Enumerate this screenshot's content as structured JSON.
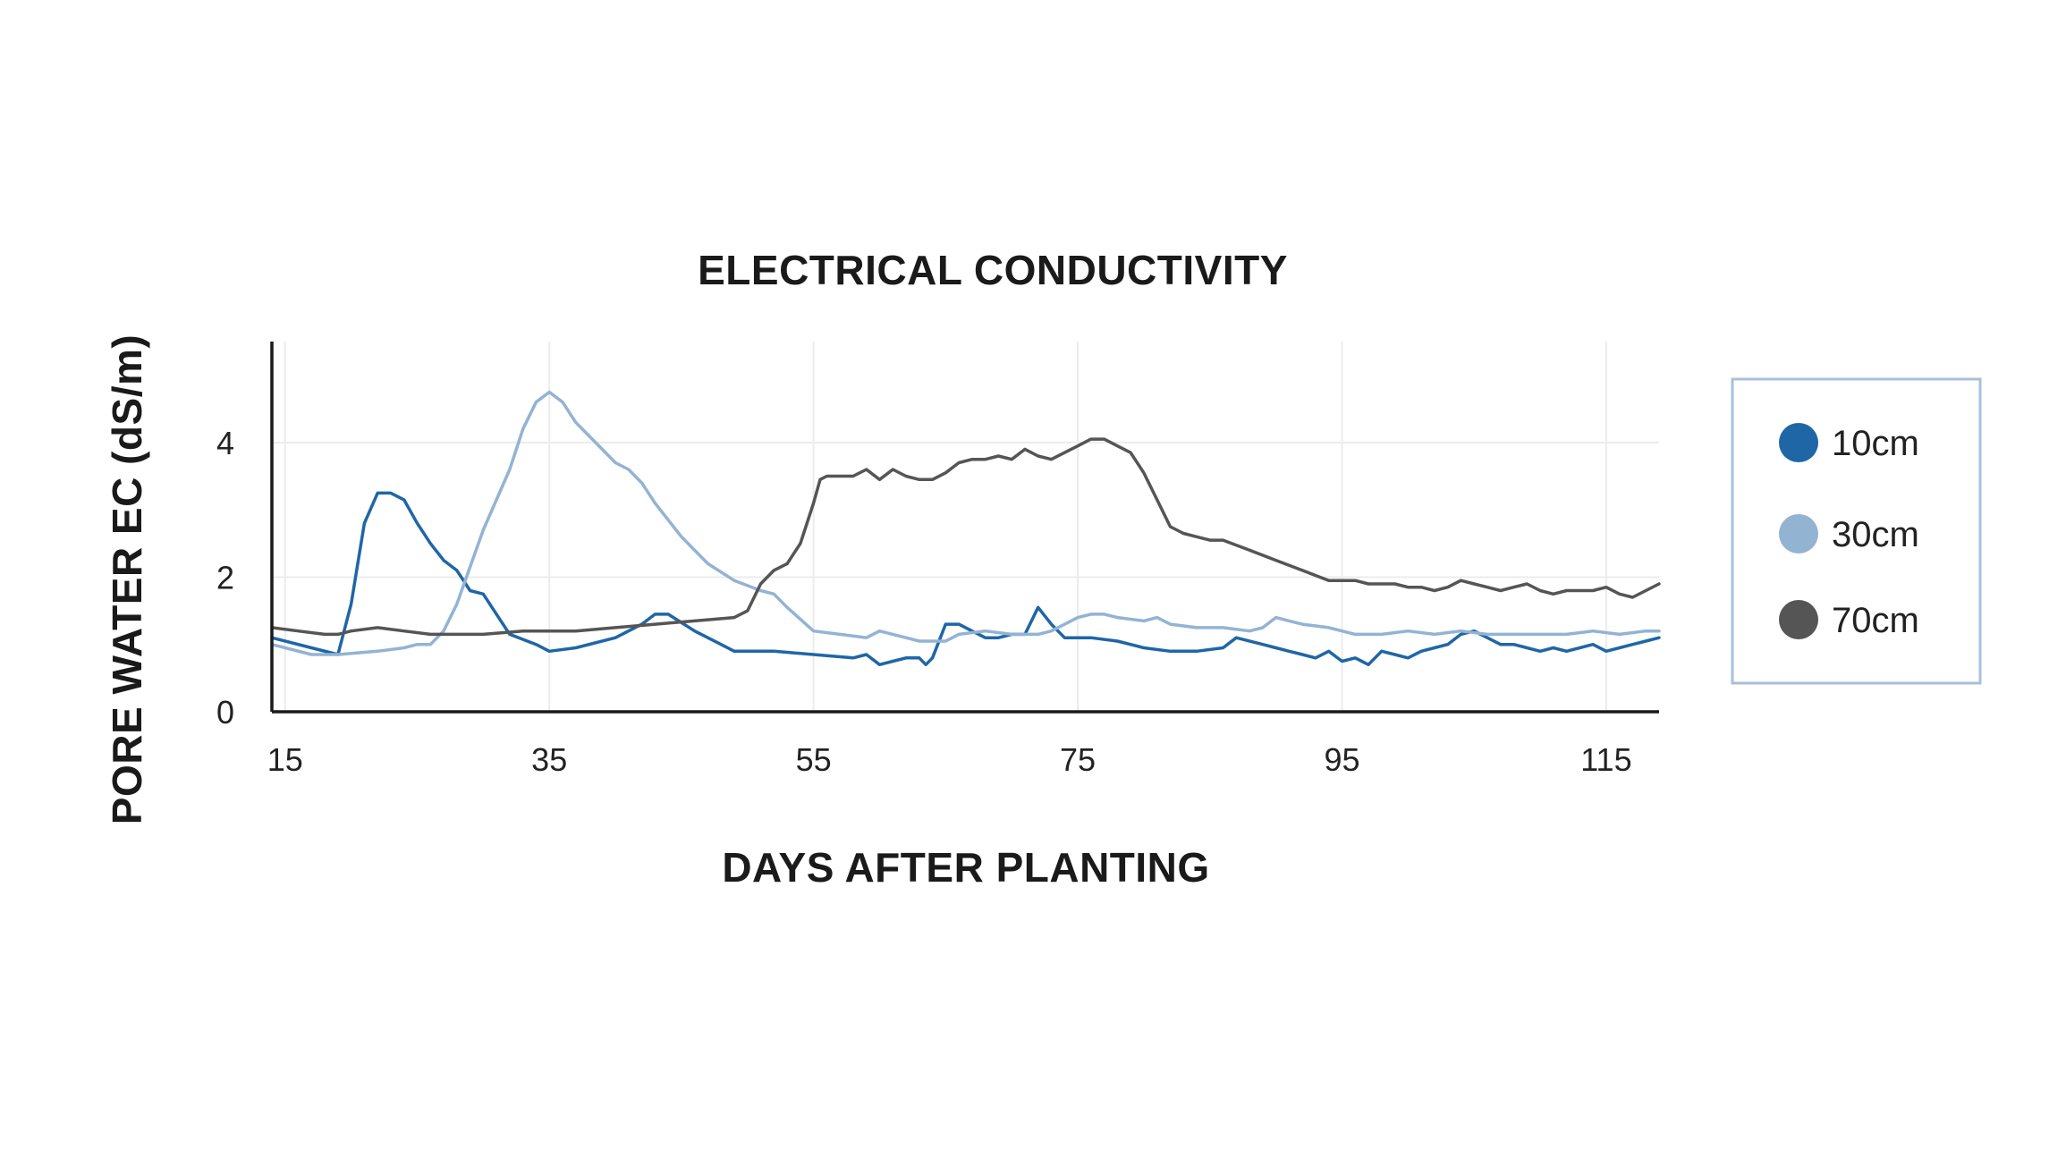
{
  "chart_data": {
    "type": "line",
    "title": "ELECTRICAL CONDUCTIVITY",
    "xlabel": "DAYS AFTER PLANTING",
    "ylabel": "PORE WATER EC (dS/m)",
    "xlim": [
      14,
      119
    ],
    "ylim": [
      0,
      5.5
    ],
    "xticks": [
      15,
      35,
      55,
      75,
      95,
      115
    ],
    "yticks": [
      0,
      2,
      4
    ],
    "grid": true,
    "legend_position": "right",
    "series": [
      {
        "name": "10cm",
        "color": "#1f66a6",
        "points": [
          [
            14,
            1.1
          ],
          [
            17,
            0.95
          ],
          [
            19,
            0.85
          ],
          [
            20,
            1.6
          ],
          [
            21,
            2.8
          ],
          [
            22,
            3.25
          ],
          [
            23,
            3.25
          ],
          [
            24,
            3.15
          ],
          [
            25,
            2.8
          ],
          [
            26,
            2.5
          ],
          [
            27,
            2.25
          ],
          [
            28,
            2.1
          ],
          [
            29,
            1.8
          ],
          [
            30,
            1.75
          ],
          [
            31,
            1.45
          ],
          [
            32,
            1.15
          ],
          [
            34,
            1.0
          ],
          [
            35,
            0.9
          ],
          [
            37,
            0.95
          ],
          [
            40,
            1.1
          ],
          [
            42,
            1.3
          ],
          [
            43,
            1.45
          ],
          [
            44,
            1.45
          ],
          [
            46,
            1.2
          ],
          [
            48,
            1.0
          ],
          [
            49,
            0.9
          ],
          [
            52,
            0.9
          ],
          [
            55,
            0.85
          ],
          [
            58,
            0.8
          ],
          [
            59,
            0.85
          ],
          [
            60,
            0.7
          ],
          [
            61,
            0.75
          ],
          [
            62,
            0.8
          ],
          [
            63,
            0.8
          ],
          [
            63.5,
            0.7
          ],
          [
            64,
            0.8
          ],
          [
            65,
            1.3
          ],
          [
            66,
            1.3
          ],
          [
            67,
            1.2
          ],
          [
            68,
            1.1
          ],
          [
            69,
            1.1
          ],
          [
            70,
            1.15
          ],
          [
            71,
            1.15
          ],
          [
            72,
            1.55
          ],
          [
            73,
            1.3
          ],
          [
            74,
            1.1
          ],
          [
            76,
            1.1
          ],
          [
            78,
            1.05
          ],
          [
            80,
            0.95
          ],
          [
            82,
            0.9
          ],
          [
            84,
            0.9
          ],
          [
            86,
            0.95
          ],
          [
            87,
            1.1
          ],
          [
            89,
            1.0
          ],
          [
            90,
            0.95
          ],
          [
            91,
            0.9
          ],
          [
            92,
            0.85
          ],
          [
            93,
            0.8
          ],
          [
            94,
            0.9
          ],
          [
            95,
            0.75
          ],
          [
            96,
            0.8
          ],
          [
            97,
            0.7
          ],
          [
            98,
            0.9
          ],
          [
            99,
            0.85
          ],
          [
            100,
            0.8
          ],
          [
            101,
            0.9
          ],
          [
            102,
            0.95
          ],
          [
            103,
            1.0
          ],
          [
            104,
            1.15
          ],
          [
            105,
            1.2
          ],
          [
            106,
            1.1
          ],
          [
            107,
            1.0
          ],
          [
            108,
            1.0
          ],
          [
            109,
            0.95
          ],
          [
            110,
            0.9
          ],
          [
            111,
            0.95
          ],
          [
            112,
            0.9
          ],
          [
            113,
            0.95
          ],
          [
            114,
            1.0
          ],
          [
            115,
            0.9
          ],
          [
            116,
            0.95
          ],
          [
            117,
            1.0
          ],
          [
            118,
            1.05
          ],
          [
            119,
            1.1
          ]
        ]
      },
      {
        "name": "30cm",
        "color": "#93b3d3",
        "points": [
          [
            14,
            1.0
          ],
          [
            17,
            0.85
          ],
          [
            19,
            0.85
          ],
          [
            22,
            0.9
          ],
          [
            24,
            0.95
          ],
          [
            25,
            1.0
          ],
          [
            26,
            1.0
          ],
          [
            27,
            1.2
          ],
          [
            28,
            1.6
          ],
          [
            30,
            2.7
          ],
          [
            32,
            3.6
          ],
          [
            33,
            4.2
          ],
          [
            34,
            4.6
          ],
          [
            35,
            4.75
          ],
          [
            36,
            4.6
          ],
          [
            37,
            4.3
          ],
          [
            39,
            3.9
          ],
          [
            40,
            3.7
          ],
          [
            41,
            3.6
          ],
          [
            42,
            3.4
          ],
          [
            43,
            3.1
          ],
          [
            45,
            2.6
          ],
          [
            47,
            2.2
          ],
          [
            49,
            1.95
          ],
          [
            51,
            1.8
          ],
          [
            52,
            1.75
          ],
          [
            53,
            1.55
          ],
          [
            55,
            1.2
          ],
          [
            57,
            1.15
          ],
          [
            59,
            1.1
          ],
          [
            60,
            1.2
          ],
          [
            61,
            1.15
          ],
          [
            63,
            1.05
          ],
          [
            65,
            1.05
          ],
          [
            66,
            1.15
          ],
          [
            68,
            1.2
          ],
          [
            70,
            1.15
          ],
          [
            72,
            1.15
          ],
          [
            73,
            1.2
          ],
          [
            75,
            1.4
          ],
          [
            76,
            1.45
          ],
          [
            77,
            1.45
          ],
          [
            78,
            1.4
          ],
          [
            80,
            1.35
          ],
          [
            81,
            1.4
          ],
          [
            82,
            1.3
          ],
          [
            84,
            1.25
          ],
          [
            86,
            1.25
          ],
          [
            88,
            1.2
          ],
          [
            89,
            1.25
          ],
          [
            90,
            1.4
          ],
          [
            91,
            1.35
          ],
          [
            92,
            1.3
          ],
          [
            94,
            1.25
          ],
          [
            96,
            1.15
          ],
          [
            98,
            1.15
          ],
          [
            100,
            1.2
          ],
          [
            102,
            1.15
          ],
          [
            104,
            1.2
          ],
          [
            106,
            1.15
          ],
          [
            108,
            1.15
          ],
          [
            110,
            1.15
          ],
          [
            112,
            1.15
          ],
          [
            114,
            1.2
          ],
          [
            116,
            1.15
          ],
          [
            118,
            1.2
          ],
          [
            119,
            1.2
          ]
        ]
      },
      {
        "name": "70cm",
        "color": "#555555",
        "points": [
          [
            14,
            1.25
          ],
          [
            16,
            1.2
          ],
          [
            18,
            1.15
          ],
          [
            19,
            1.15
          ],
          [
            20,
            1.2
          ],
          [
            22,
            1.25
          ],
          [
            24,
            1.2
          ],
          [
            26,
            1.15
          ],
          [
            28,
            1.15
          ],
          [
            30,
            1.15
          ],
          [
            33,
            1.2
          ],
          [
            35,
            1.2
          ],
          [
            37,
            1.2
          ],
          [
            40,
            1.25
          ],
          [
            43,
            1.3
          ],
          [
            46,
            1.35
          ],
          [
            49,
            1.4
          ],
          [
            50,
            1.5
          ],
          [
            51,
            1.9
          ],
          [
            52,
            2.1
          ],
          [
            53,
            2.2
          ],
          [
            54,
            2.5
          ],
          [
            55,
            3.1
          ],
          [
            55.5,
            3.45
          ],
          [
            56,
            3.5
          ],
          [
            57,
            3.5
          ],
          [
            58,
            3.5
          ],
          [
            59,
            3.6
          ],
          [
            60,
            3.45
          ],
          [
            61,
            3.6
          ],
          [
            62,
            3.5
          ],
          [
            63,
            3.45
          ],
          [
            64,
            3.45
          ],
          [
            65,
            3.55
          ],
          [
            66,
            3.7
          ],
          [
            67,
            3.75
          ],
          [
            68,
            3.75
          ],
          [
            69,
            3.8
          ],
          [
            70,
            3.75
          ],
          [
            71,
            3.9
          ],
          [
            72,
            3.8
          ],
          [
            73,
            3.75
          ],
          [
            74,
            3.85
          ],
          [
            75,
            3.95
          ],
          [
            76,
            4.05
          ],
          [
            77,
            4.05
          ],
          [
            78,
            3.95
          ],
          [
            79,
            3.85
          ],
          [
            80,
            3.55
          ],
          [
            81,
            3.15
          ],
          [
            82,
            2.75
          ],
          [
            83,
            2.65
          ],
          [
            84,
            2.6
          ],
          [
            85,
            2.55
          ],
          [
            86,
            2.55
          ],
          [
            88,
            2.4
          ],
          [
            90,
            2.25
          ],
          [
            92,
            2.1
          ],
          [
            94,
            1.95
          ],
          [
            95,
            1.95
          ],
          [
            96,
            1.95
          ],
          [
            97,
            1.9
          ],
          [
            99,
            1.9
          ],
          [
            100,
            1.85
          ],
          [
            101,
            1.85
          ],
          [
            102,
            1.8
          ],
          [
            103,
            1.85
          ],
          [
            104,
            1.95
          ],
          [
            105,
            1.9
          ],
          [
            106,
            1.85
          ],
          [
            107,
            1.8
          ],
          [
            108,
            1.85
          ],
          [
            109,
            1.9
          ],
          [
            110,
            1.8
          ],
          [
            111,
            1.75
          ],
          [
            112,
            1.8
          ],
          [
            113,
            1.8
          ],
          [
            114,
            1.8
          ],
          [
            115,
            1.85
          ],
          [
            116,
            1.75
          ],
          [
            117,
            1.7
          ],
          [
            118,
            1.8
          ],
          [
            119,
            1.9
          ]
        ]
      }
    ]
  }
}
